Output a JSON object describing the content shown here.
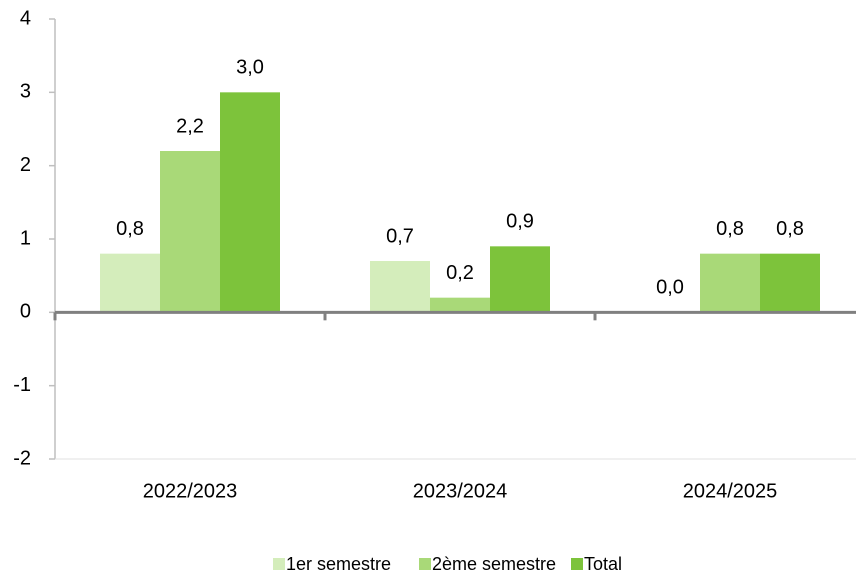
{
  "chart_data": {
    "type": "bar",
    "categories": [
      "2022/2023",
      "2023/2024",
      "2024/2025"
    ],
    "series": [
      {
        "name": "1er semestre",
        "color": "#d4edbb",
        "values": [
          0.8,
          0.7,
          0.0
        ],
        "value_labels": [
          "0,8",
          "0,7",
          "0,0"
        ]
      },
      {
        "name": "2ème semestre",
        "color": "#a9d978",
        "values": [
          2.2,
          0.2,
          0.8
        ],
        "value_labels": [
          "2,2",
          "0,2",
          "0,8"
        ]
      },
      {
        "name": "Total",
        "color": "#7dc33b",
        "values": [
          3.0,
          0.9,
          0.8
        ],
        "value_labels": [
          "3,0",
          "0,9",
          "0,8"
        ]
      }
    ],
    "ylim": [
      -2,
      4
    ],
    "yticks": [
      -2,
      -1,
      0,
      1,
      2,
      3,
      4
    ],
    "grid": false,
    "legend": "bottom"
  }
}
